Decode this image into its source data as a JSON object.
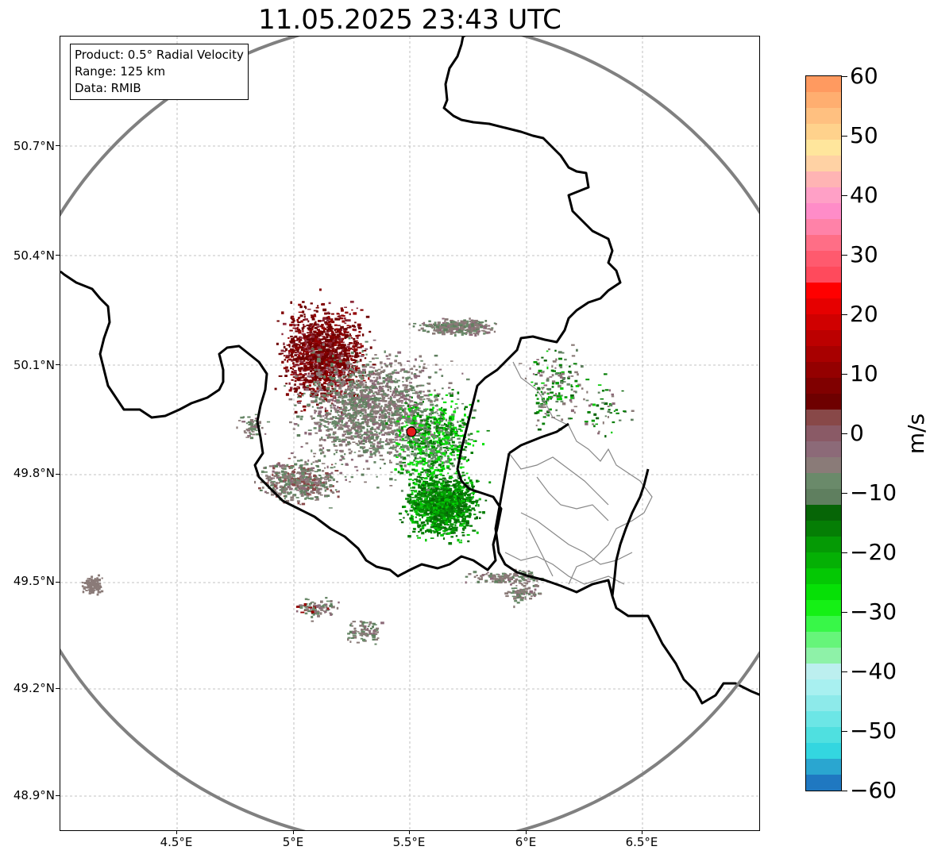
{
  "title": "11.05.2025 23:43 UTC",
  "info": {
    "product": "Product: 0.5° Radial Velocity",
    "range": "Range: 125 km",
    "data": "Data: RMIB"
  },
  "lat_ticks": [
    "50.7°N",
    "50.4°N",
    "50.1°N",
    "49.8°N",
    "49.5°N",
    "49.2°N",
    "48.9°N"
  ],
  "lon_ticks": [
    "4.5°E",
    "5°E",
    "5.5°E",
    "6°E",
    "6.5°E"
  ],
  "colorbar": {
    "unit": "m/s",
    "min": -60,
    "max": 60,
    "tick_labels": [
      "60",
      "50",
      "40",
      "30",
      "20",
      "10",
      "0",
      "−10",
      "−20",
      "−30",
      "−40",
      "−50",
      "−60"
    ],
    "colors": [
      "#1f78c1",
      "#2aa6d0",
      "#33d6e0",
      "#4fe0e0",
      "#6ce6e6",
      "#8deaea",
      "#a8f0f0",
      "#bcefef",
      "#8ef2a8",
      "#66f57a",
      "#38f748",
      "#15f015",
      "#06e006",
      "#04c804",
      "#05b005",
      "#059a05",
      "#057e05",
      "#066506",
      "#5f7f5f",
      "#6a8a6a",
      "#8a7b78",
      "#8c6a78",
      "#8a5a66",
      "#884848",
      "#6e0000",
      "#800000",
      "#940000",
      "#a80000",
      "#bc0000",
      "#d00000",
      "#e60000",
      "#ff0000",
      "#ff4a5c",
      "#ff5a6e",
      "#ff6e86",
      "#ff82a8",
      "#ff8cc8",
      "#ffa0c6",
      "#ffb4b4",
      "#ffd2a4",
      "#ffe69c",
      "#ffd28c",
      "#ffc080",
      "#ffae70",
      "#ff9a60"
    ]
  },
  "radar_site": {
    "lat": 49.91,
    "lon": 5.5
  },
  "range_circle_color": "#808080",
  "border_color": "#000000"
}
